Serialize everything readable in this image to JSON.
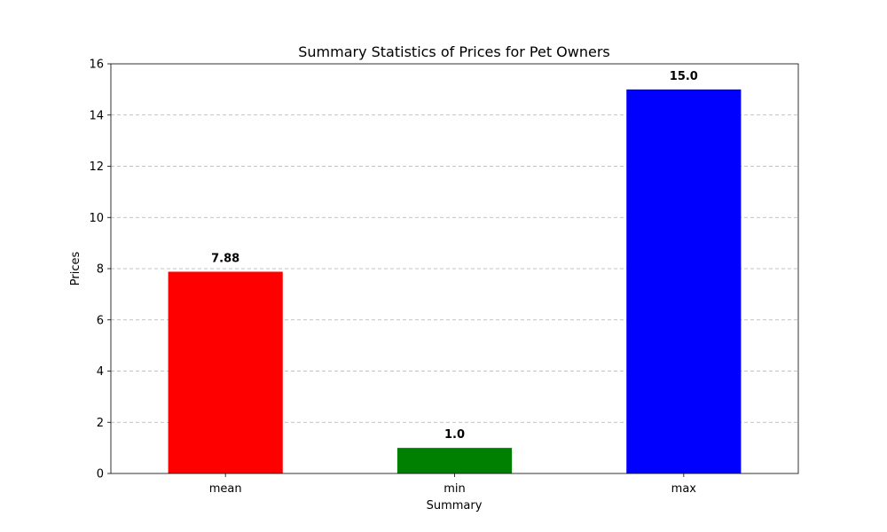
{
  "chart_data": {
    "type": "bar",
    "title": "Summary Statistics of Prices for Pet Owners",
    "xlabel": "Summary",
    "ylabel": "Prices",
    "categories": [
      "mean",
      "min",
      "max"
    ],
    "values": [
      7.88,
      1.0,
      15.0
    ],
    "value_labels": [
      "7.88",
      "1.0",
      "15.0"
    ],
    "colors": [
      "#ff0000",
      "#008000",
      "#0000ff"
    ],
    "ylim": [
      0,
      16
    ],
    "yticks": [
      0,
      2,
      4,
      6,
      8,
      10,
      12,
      14,
      16
    ],
    "grid": "y-dashed",
    "legend": "none"
  }
}
